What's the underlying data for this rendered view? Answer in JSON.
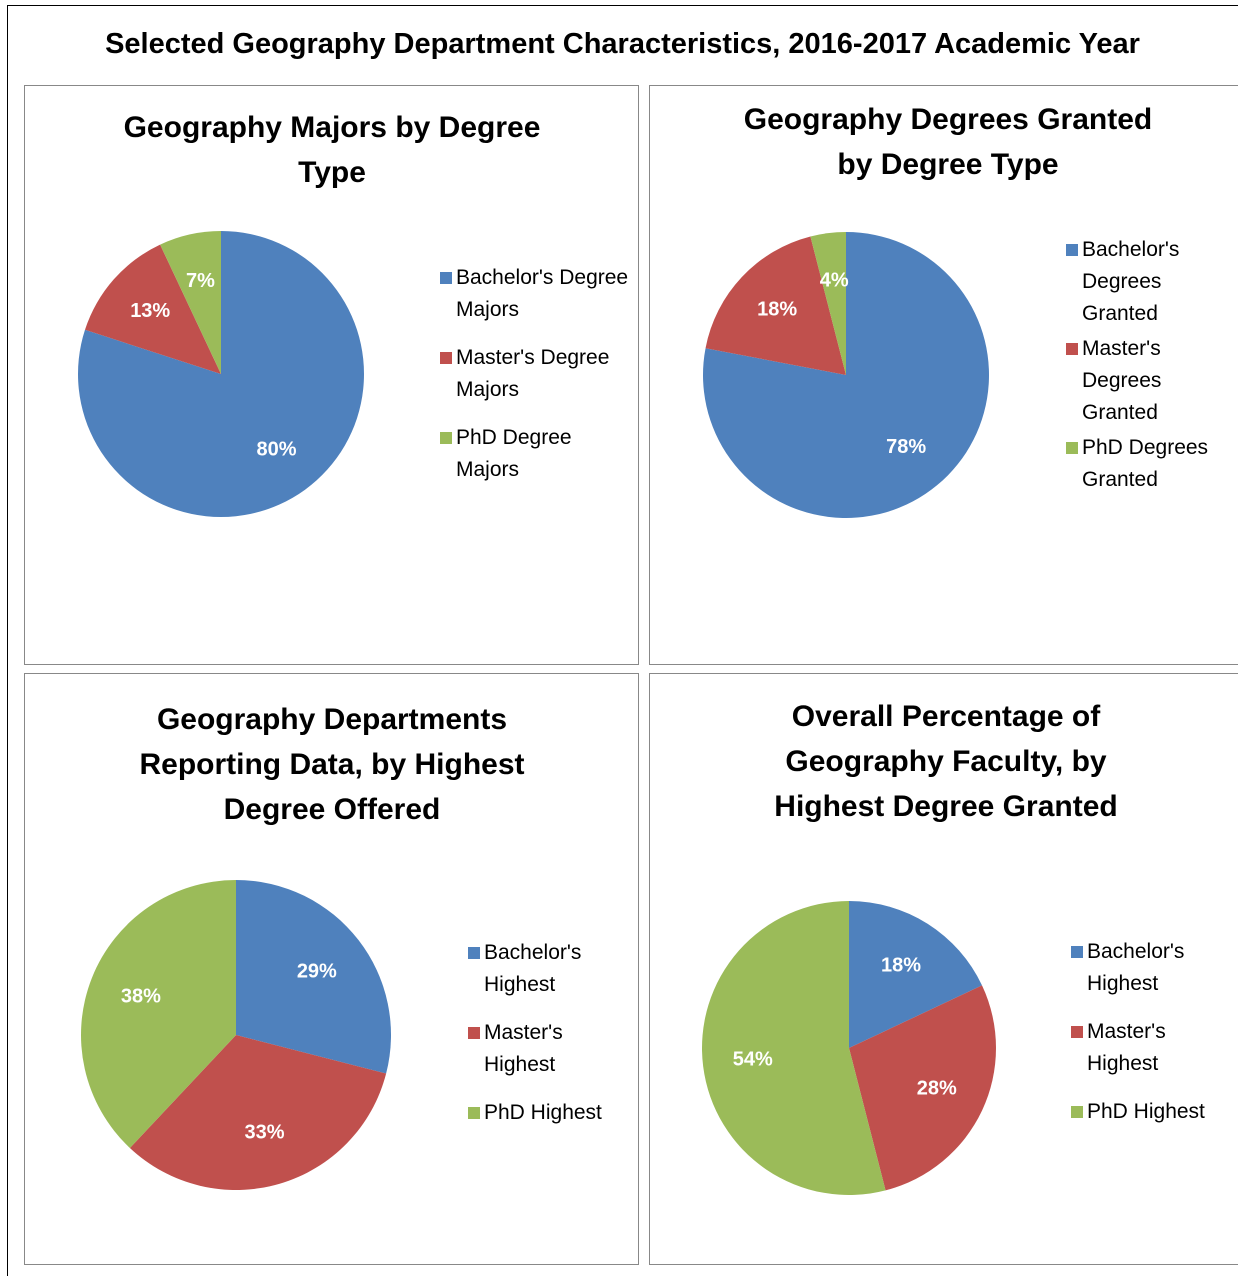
{
  "title": "Selected Geography Department Characteristics, 2016-2017 Academic Year",
  "chart_data": [
    {
      "type": "pie",
      "title": "Geography Majors by Degree Type",
      "categories": [
        "Bachelor's Degree Majors",
        "Master's Degree Majors",
        "PhD Degree Majors"
      ],
      "values": [
        80,
        13,
        7
      ],
      "value_labels": [
        "80%",
        "13%",
        "7%"
      ],
      "colors": [
        "#4f81bd",
        "#c0504d",
        "#9bbb59"
      ]
    },
    {
      "type": "pie",
      "title": "Geography Degrees Granted by Degree Type",
      "categories": [
        "Bachelor's Degrees Granted",
        "Master's Degrees Granted",
        "PhD Degrees Granted"
      ],
      "values": [
        78,
        18,
        4
      ],
      "value_labels": [
        "78%",
        "18%",
        "4%"
      ],
      "colors": [
        "#4f81bd",
        "#c0504d",
        "#9bbb59"
      ]
    },
    {
      "type": "pie",
      "title": "Geography Departments Reporting Data, by Highest Degree Offered",
      "categories": [
        "Bachelor's Highest",
        "Master's Highest",
        "PhD Highest"
      ],
      "values": [
        29,
        33,
        38
      ],
      "value_labels": [
        "29%",
        "33%",
        "38%"
      ],
      "colors": [
        "#4f81bd",
        "#c0504d",
        "#9bbb59"
      ]
    },
    {
      "type": "pie",
      "title": "Overall Percentage of Geography Faculty, by Highest Degree Granted",
      "categories": [
        "Bachelor's Highest",
        "Master's Highest",
        "PhD Highest"
      ],
      "values": [
        18,
        28,
        54
      ],
      "value_labels": [
        "18%",
        "28%",
        "54%"
      ],
      "colors": [
        "#4f81bd",
        "#c0504d",
        "#9bbb59"
      ]
    }
  ]
}
